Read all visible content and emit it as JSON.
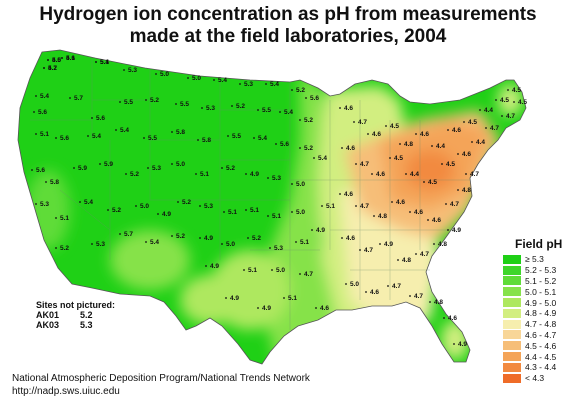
{
  "title_line1": "Hydrogen ion concentration as pH from measurements",
  "title_line2": "made at the field laboratories, 2004",
  "legend": {
    "title": "Field pH",
    "items": [
      {
        "label": "≥ 5.3",
        "color": "#1fd016"
      },
      {
        "label": "5.2 - 5.3",
        "color": "#3ed62a"
      },
      {
        "label": "5.1 - 5.2",
        "color": "#5fdc38"
      },
      {
        "label": "5.0 - 5.1",
        "color": "#86e24a"
      },
      {
        "label": "4.9 - 5.0",
        "color": "#aee85e"
      },
      {
        "label": "4.8 - 4.9",
        "color": "#d2ee80"
      },
      {
        "label": "4.7 - 4.8",
        "color": "#f6eeae"
      },
      {
        "label": "4.6 - 4.7",
        "color": "#f8d698"
      },
      {
        "label": "4.5 - 4.6",
        "color": "#f6be78"
      },
      {
        "label": "4.4 - 4.5",
        "color": "#f4a458"
      },
      {
        "label": "4.3 - 4.4",
        "color": "#f28a40"
      },
      {
        "label": "< 4.3",
        "color": "#ef6c28"
      }
    ]
  },
  "sites_not_pictured": {
    "heading": "Sites not pictured:",
    "sites": [
      {
        "site": "AK01",
        "value": "5.2"
      },
      {
        "site": "AK03",
        "value": "5.3"
      }
    ]
  },
  "footer_line1": "National Atmospheric Deposition Program/National Trends Network",
  "footer_line2": "http://nadp.sws.uiuc.edu",
  "map_values": {
    "zones": {
      "west": "≥ 5.3",
      "plains_edge": "5.0 - 5.1",
      "midwest": "4.8 - 4.9",
      "south": "4.7 - 4.8",
      "ohio_valley": "4.5 - 4.6",
      "northeast_core": "4.3 - 4.4"
    },
    "site_values": [
      "5.0",
      "5.1",
      "5.2",
      "5.4",
      "5.3",
      "5.0",
      "5.0",
      "5.4",
      "5.3",
      "5.4",
      "5.2",
      "5.6",
      "5.4",
      "5.6",
      "5.7",
      "5.6",
      "5.5",
      "5.2",
      "5.5",
      "5.3",
      "5.2",
      "5.5",
      "5.4",
      "5.2",
      "5.1",
      "5.6",
      "5.4",
      "5.4",
      "5.5",
      "5.8",
      "5.8",
      "5.5",
      "5.4",
      "5.6",
      "5.2",
      "5.4",
      "5.6",
      "5.8",
      "5.9",
      "5.9",
      "5.2",
      "5.3",
      "5.0",
      "5.1",
      "5.2",
      "4.9",
      "5.3",
      "5.0",
      "5.3",
      "5.1",
      "5.4",
      "5.2",
      "5.0",
      "4.9",
      "5.2",
      "5.3",
      "5.1",
      "5.1",
      "5.1",
      "5.0",
      "5.2",
      "5.3",
      "5.7",
      "5.4",
      "5.2",
      "4.9",
      "5.0",
      "5.2",
      "5.3",
      "5.1",
      "4.9",
      "5.1",
      "4.9",
      "5.1",
      "5.0",
      "4.7",
      "4.9",
      "4.9",
      "5.1",
      "4.6",
      "4.6",
      "4.7",
      "4.6",
      "4.5",
      "4.8",
      "4.6",
      "4.4",
      "4.6",
      "4.5",
      "4.4",
      "4.5",
      "4.5",
      "4.6",
      "4.7",
      "4.6",
      "4.5",
      "4.4",
      "4.5",
      "4.5",
      "4.6",
      "4.4",
      "4.7",
      "4.7",
      "4.5",
      "4.6",
      "4.7",
      "4.8",
      "4.6",
      "4.6",
      "4.6",
      "4.7",
      "4.8",
      "4.7",
      "4.6",
      "4.7",
      "4.9",
      "4.8",
      "4.7",
      "4.8",
      "4.9",
      "5.0",
      "4.6",
      "4.7",
      "4.7",
      "4.8",
      "4.6",
      "4.9",
      "4.5",
      "4.6",
      "4.7",
      "5.1"
    ]
  }
}
